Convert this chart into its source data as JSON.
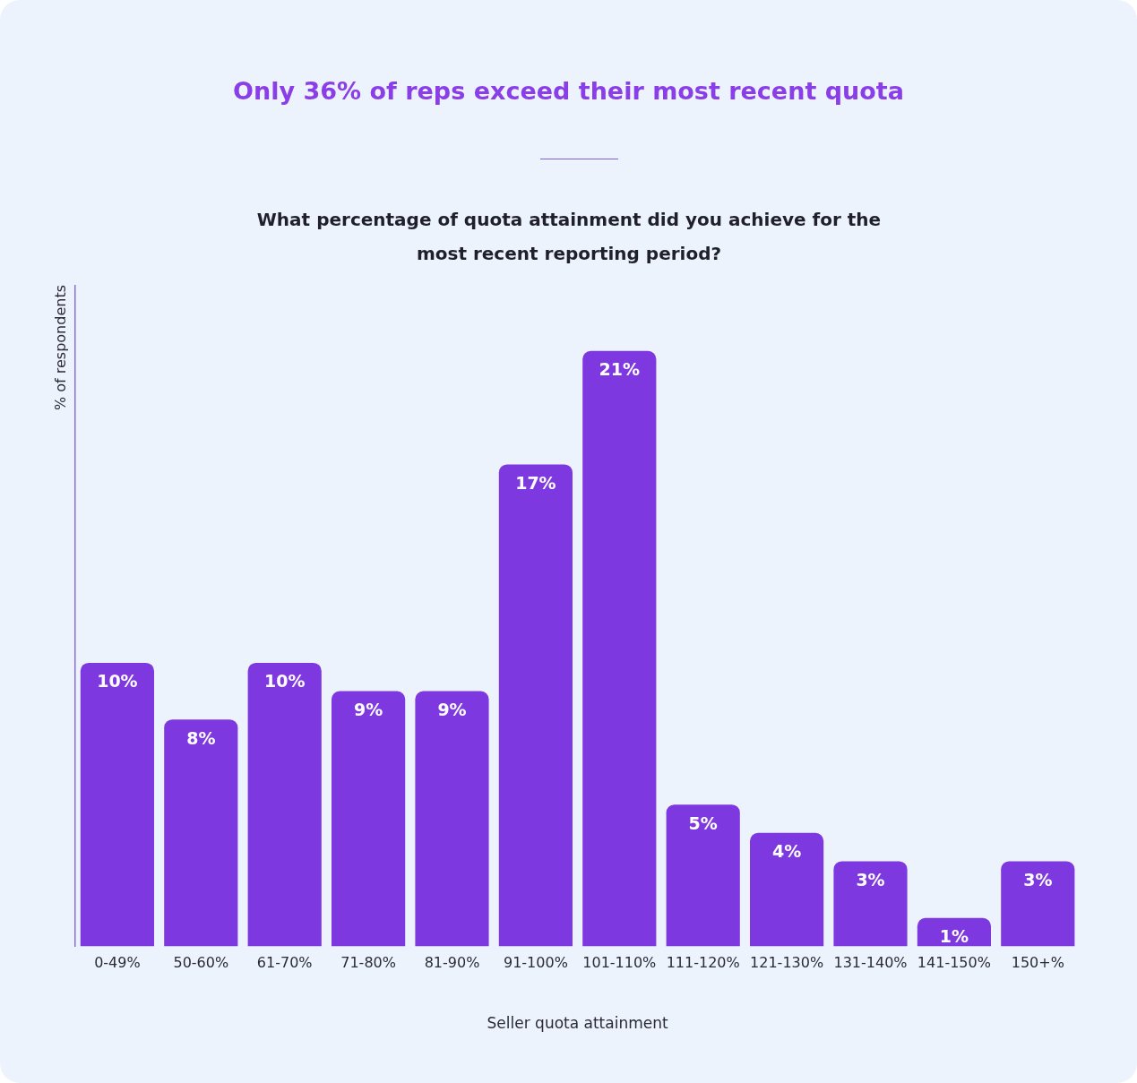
{
  "chart_data": {
    "type": "bar",
    "title": "Only 36% of reps exceed their most recent quota",
    "subtitle": "What percentage of quota attainment did you achieve for the most recent reporting period?",
    "xlabel": "Seller quota attainment",
    "ylabel": "% of respondents",
    "categories": [
      "0-49%",
      "50-60%",
      "61-70%",
      "71-80%",
      "81-90%",
      "91-100%",
      "101-110%",
      "111-120%",
      "121-130%",
      "131-140%",
      "141-150%",
      "150+%"
    ],
    "values": [
      10,
      8,
      10,
      9,
      9,
      17,
      21,
      5,
      4,
      3,
      1,
      3
    ],
    "value_labels": [
      "10%",
      "8%",
      "10%",
      "9%",
      "9%",
      "17%",
      "21%",
      "5%",
      "4%",
      "3%",
      "1%",
      "3%"
    ],
    "color": "#7e38e0",
    "grid": false,
    "legend": false
  }
}
